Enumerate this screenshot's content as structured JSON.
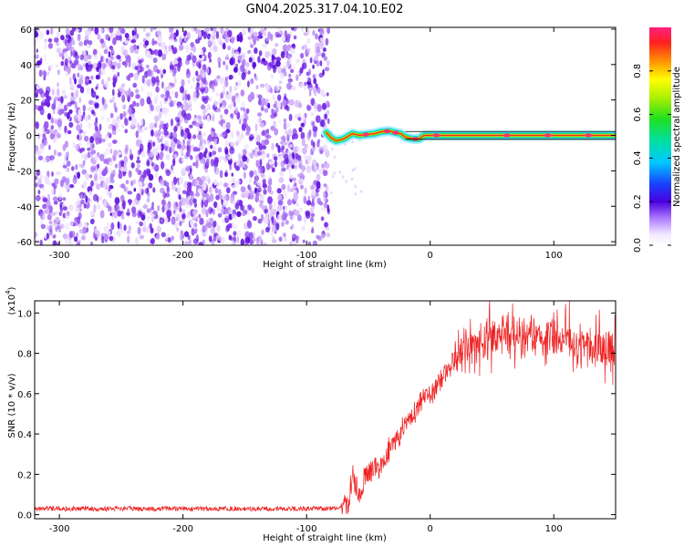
{
  "title": "GN04.2025.317.04.10.E02",
  "colors": {
    "signal": "#ee2222",
    "noise_purple": "#7a1fe0",
    "trace_core": "#ff2a1a",
    "trace_edge": "#20d8e8",
    "background": "#ffffff"
  },
  "chart_data": [
    {
      "type": "heatmap",
      "title": "GN04.2025.317.04.10.E02",
      "xlabel": "Height of straight line (km)",
      "ylabel": "Frequency (Hz)",
      "xlim": [
        -320,
        150
      ],
      "ylim": [
        -62,
        61
      ],
      "xticks": [
        -300,
        -200,
        -100,
        0,
        100
      ],
      "yticks": [
        -60,
        -40,
        -20,
        0,
        20,
        40,
        60
      ],
      "noise_region_x": [
        -320,
        -82
      ],
      "trace_points": [
        {
          "x": -84,
          "y": 1.5
        },
        {
          "x": -80,
          "y": -1.5
        },
        {
          "x": -76,
          "y": -3
        },
        {
          "x": -70,
          "y": -2
        },
        {
          "x": -63,
          "y": 1
        },
        {
          "x": -57,
          "y": 0
        },
        {
          "x": -52,
          "y": 0.5
        },
        {
          "x": -45,
          "y": 1
        },
        {
          "x": -40,
          "y": 2
        },
        {
          "x": -33,
          "y": 2.5
        },
        {
          "x": -28,
          "y": 1.5
        },
        {
          "x": -24,
          "y": 1
        },
        {
          "x": -20,
          "y": -1
        },
        {
          "x": -14,
          "y": -2
        },
        {
          "x": -9,
          "y": -2
        },
        {
          "x": -5,
          "y": 0
        },
        {
          "x": 0,
          "y": 0
        },
        {
          "x": 20,
          "y": 0
        },
        {
          "x": 150,
          "y": 0
        }
      ],
      "colorbar": {
        "label": "Normalized spectral amplitude",
        "range": [
          0,
          1
        ],
        "ticks": [
          "0.0",
          "0.2",
          "0.4",
          "0.6",
          "0.8"
        ],
        "tick_values": [
          0,
          0.2,
          0.4,
          0.6,
          0.8
        ]
      }
    },
    {
      "type": "line",
      "xlabel": "Height of straight line (km)",
      "ylabel": "SNR (10 * v/v)",
      "y_multiplier": "(x10",
      "y_multiplier_exp": "4",
      "xlim": [
        -320,
        150
      ],
      "ylim": [
        -0.02,
        1.06
      ],
      "xticks": [
        -300,
        -200,
        -100,
        0,
        100
      ],
      "yticks": [
        "0.0",
        "0.2",
        "0.4",
        "0.6",
        "0.8",
        "1.0"
      ],
      "ytick_values": [
        0,
        0.2,
        0.4,
        0.6,
        0.8,
        1.0
      ],
      "series": [
        {
          "name": "SNR",
          "color": "#ee2222",
          "envelope": [
            {
              "x": -320,
              "y": 0.03
            },
            {
              "x": -80,
              "y": 0.03
            },
            {
              "x": -66,
              "y": 0.05
            },
            {
              "x": -63,
              "y": 0.2
            },
            {
              "x": -58,
              "y": 0.1
            },
            {
              "x": -52,
              "y": 0.2
            },
            {
              "x": -40,
              "y": 0.25
            },
            {
              "x": -30,
              "y": 0.35
            },
            {
              "x": -20,
              "y": 0.45
            },
            {
              "x": -10,
              "y": 0.53
            },
            {
              "x": 0,
              "y": 0.6
            },
            {
              "x": 10,
              "y": 0.68
            },
            {
              "x": 20,
              "y": 0.78
            },
            {
              "x": 30,
              "y": 0.84
            },
            {
              "x": 45,
              "y": 0.87
            },
            {
              "x": 60,
              "y": 0.9
            },
            {
              "x": 80,
              "y": 0.9
            },
            {
              "x": 100,
              "y": 0.88
            },
            {
              "x": 120,
              "y": 0.85
            },
            {
              "x": 150,
              "y": 0.82
            }
          ]
        }
      ]
    }
  ]
}
